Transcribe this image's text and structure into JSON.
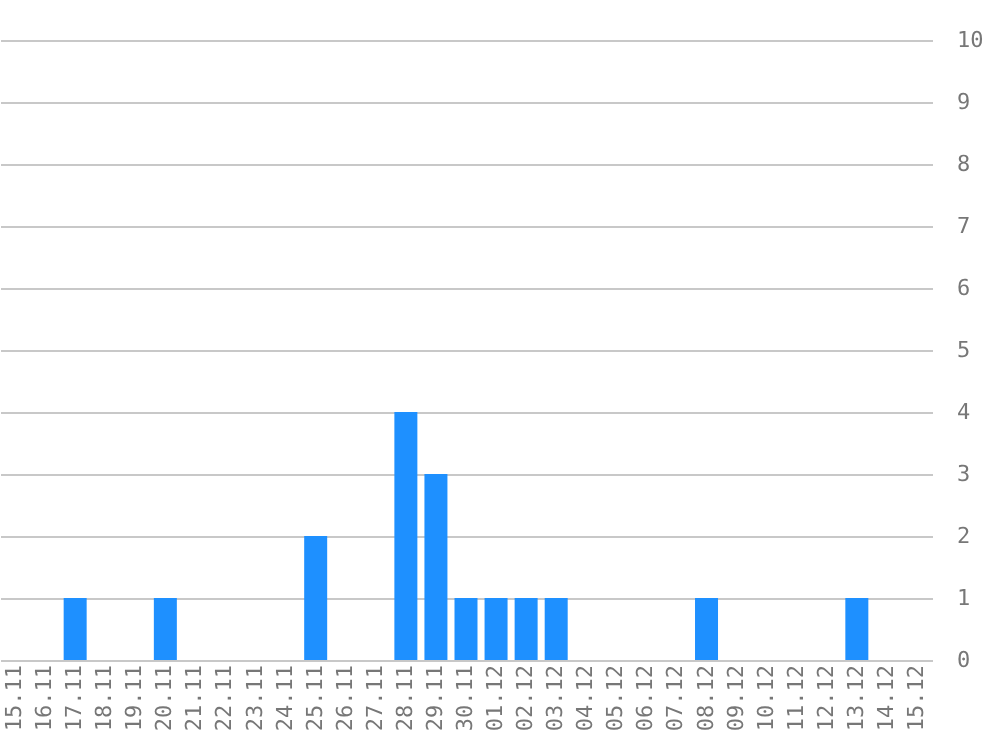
{
  "chart_data": {
    "type": "bar",
    "categories": [
      "15.11",
      "16.11",
      "17.11",
      "18.11",
      "19.11",
      "20.11",
      "21.11",
      "22.11",
      "23.11",
      "24.11",
      "25.11",
      "26.11",
      "27.11",
      "28.11",
      "29.11",
      "30.11",
      "01.12",
      "02.12",
      "03.12",
      "04.12",
      "05.12",
      "06.12",
      "07.12",
      "08.12",
      "09.12",
      "10.12",
      "11.12",
      "12.12",
      "13.12",
      "14.12",
      "15.12"
    ],
    "values": [
      0,
      0,
      1,
      0,
      0,
      1,
      0,
      0,
      0,
      0,
      2,
      0,
      0,
      4,
      3,
      1,
      1,
      1,
      1,
      0,
      0,
      0,
      0,
      1,
      0,
      0,
      0,
      0,
      1,
      0,
      0
    ],
    "color": "#1e90ff",
    "ylim": [
      0,
      10
    ],
    "yticks": [
      0,
      1,
      2,
      3,
      4,
      5,
      6,
      7,
      8,
      9,
      10
    ],
    "grid": "y"
  }
}
